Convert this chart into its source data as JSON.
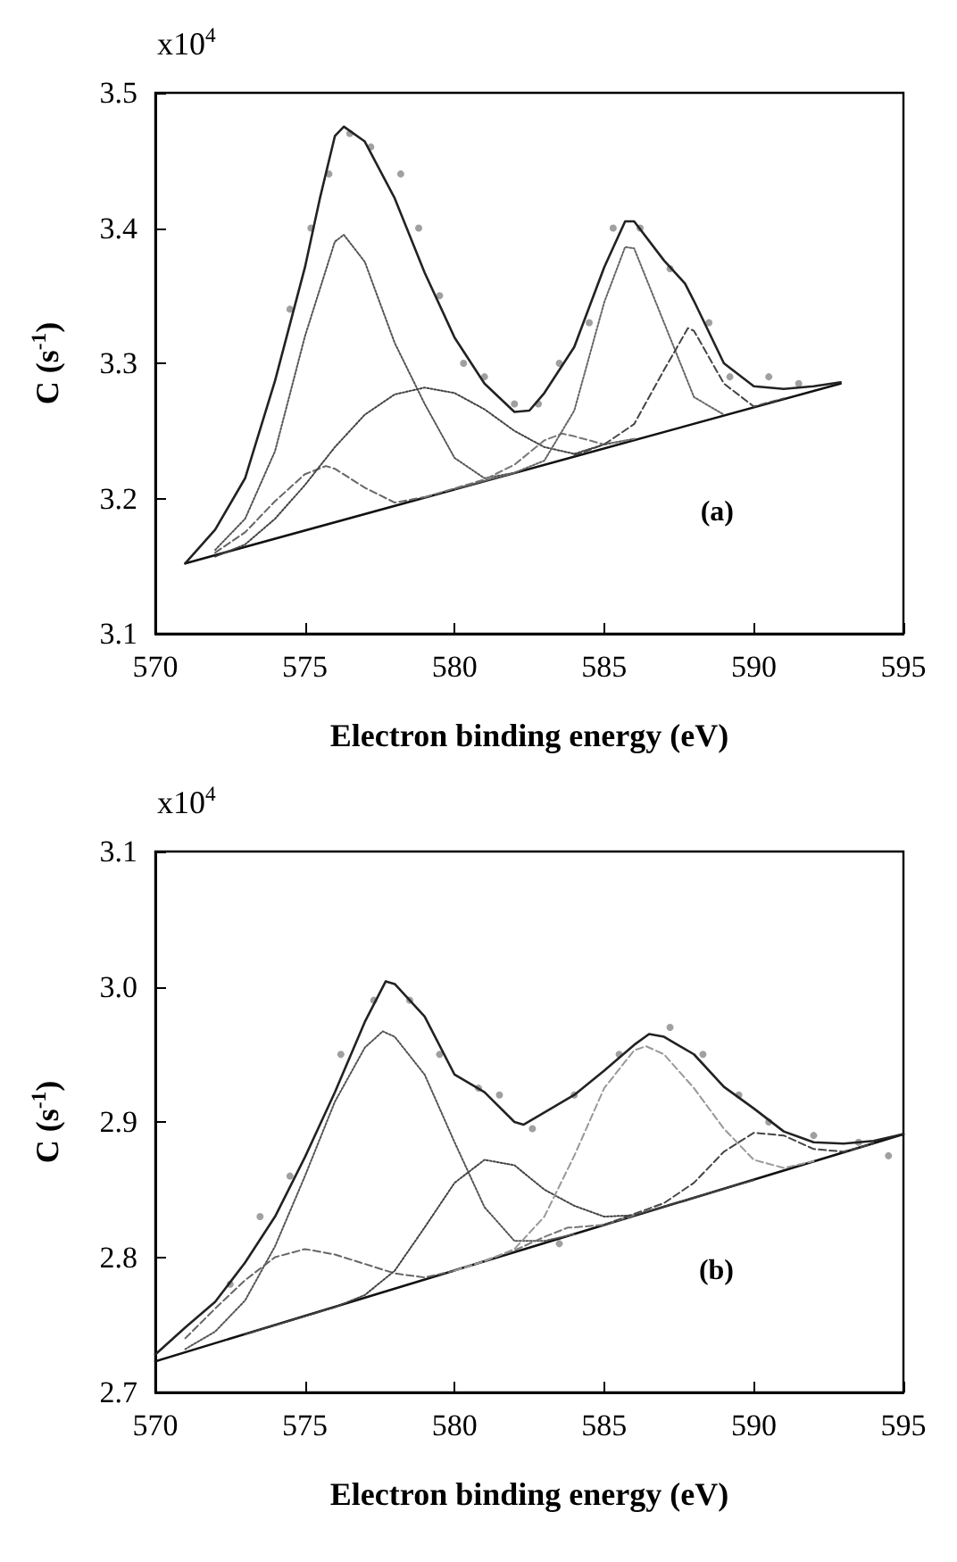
{
  "chart_data": [
    {
      "type": "line",
      "xlabel": "Electron binding energy (eV)",
      "ylabel": "C (s$^{-1}$)",
      "annotations": [
        "x10$^{4}$",
        "(a)"
      ],
      "xlim": [
        570,
        595
      ],
      "xticks": [
        570,
        575,
        580,
        585,
        590,
        595
      ],
      "ylim": [
        3.1,
        3.5
      ],
      "yticks": [
        3.1,
        3.2,
        3.3,
        3.4,
        3.5
      ],
      "grid": false,
      "marker": "none",
      "series": [
        {
          "type": "scatter",
          "marker": "circle",
          "color": "#888888",
          "x": [
            574.5,
            575.2,
            575.8,
            576.5,
            577.2,
            578.2,
            578.8,
            579.5,
            580.3,
            581,
            582,
            582.8,
            583.5,
            584.5,
            585.3,
            586.2,
            587.2,
            588.5,
            589.2,
            590.5,
            591.5
          ],
          "values": [
            3.34,
            3.4,
            3.44,
            3.47,
            3.46,
            3.44,
            3.4,
            3.35,
            3.3,
            3.29,
            3.27,
            3.27,
            3.3,
            3.33,
            3.4,
            3.4,
            3.37,
            3.33,
            3.29,
            3.29,
            3.285
          ]
        },
        {
          "color": "#111111",
          "line_style": "solid",
          "x": [
            571,
            592.9
          ],
          "values": [
            3.152,
            3.285
          ]
        },
        {
          "color": "#555555",
          "line_style": "dotted",
          "x": [
            572,
            573,
            574,
            575,
            576,
            576.3,
            577,
            578,
            579,
            580,
            581,
            582
          ],
          "values": [
            3.162,
            3.185,
            3.235,
            3.32,
            3.39,
            3.395,
            3.375,
            3.315,
            3.27,
            3.23,
            3.215,
            3.219
          ]
        },
        {
          "color": "#666666",
          "line_style": "dashed",
          "x": [
            572,
            573,
            574,
            575,
            575.7,
            576,
            577,
            578,
            579
          ],
          "values": [
            3.16,
            3.175,
            3.198,
            3.218,
            3.224,
            3.222,
            3.208,
            3.197,
            3.201
          ]
        },
        {
          "color": "#444444",
          "line_style": "dotted",
          "x": [
            572,
            573,
            574,
            575,
            576,
            577,
            578,
            579,
            580,
            581,
            582,
            583,
            584,
            585,
            586
          ],
          "values": [
            3.157,
            3.166,
            3.185,
            3.21,
            3.238,
            3.262,
            3.277,
            3.282,
            3.278,
            3.266,
            3.25,
            3.238,
            3.233,
            3.24,
            3.244
          ]
        },
        {
          "color": "#777777",
          "line_style": "dashed",
          "x": [
            579,
            581,
            582,
            583,
            583.6,
            584,
            585,
            586
          ],
          "values": [
            3.201,
            3.214,
            3.225,
            3.243,
            3.248,
            3.246,
            3.24,
            3.244
          ]
        },
        {
          "color": "#666666",
          "line_style": "dotted",
          "x": [
            580,
            582,
            583,
            584,
            585,
            585.7,
            586,
            587,
            588,
            589
          ],
          "values": [
            3.207,
            3.219,
            3.228,
            3.265,
            3.345,
            3.386,
            3.385,
            3.33,
            3.275,
            3.262
          ]
        },
        {
          "color": "#444444",
          "line_style": "dashed",
          "x": [
            584,
            585,
            586,
            587,
            587.8,
            588,
            589,
            590,
            591
          ],
          "values": [
            3.232,
            3.24,
            3.255,
            3.295,
            3.326,
            3.324,
            3.285,
            3.268,
            3.274
          ]
        },
        {
          "color": "#222222",
          "line_style": "solid",
          "x": [
            571,
            572,
            573,
            574,
            575,
            575.5,
            576,
            576.3,
            577,
            578,
            579,
            580,
            581,
            582,
            582.5,
            583,
            584,
            585,
            585.7,
            586,
            587,
            587.7,
            588,
            589,
            590,
            591,
            592,
            592.9
          ],
          "values": [
            3.152,
            3.177,
            3.215,
            3.287,
            3.371,
            3.422,
            3.468,
            3.475,
            3.464,
            3.422,
            3.367,
            3.319,
            3.285,
            3.264,
            3.265,
            3.278,
            3.312,
            3.371,
            3.405,
            3.405,
            3.376,
            3.359,
            3.346,
            3.3,
            3.283,
            3.281,
            3.283,
            3.286
          ]
        }
      ]
    },
    {
      "type": "line",
      "xlabel": "Electron binding energy (eV)",
      "ylabel": "C (s$^{-1}$)",
      "annotations": [
        "x10$^{4}$",
        "(b)"
      ],
      "xlim": [
        570,
        595
      ],
      "xticks": [
        570,
        575,
        580,
        585,
        590,
        595
      ],
      "ylim": [
        2.7,
        3.1
      ],
      "yticks": [
        2.7,
        2.8,
        2.9,
        {
          "value": 3,
          "label": "3.0"
        },
        3.1
      ],
      "grid": false,
      "marker": "none",
      "series": [
        {
          "type": "scatter",
          "marker": "circle",
          "color": "#888888",
          "x": [
            572.5,
            573.5,
            574.5,
            576.2,
            577.3,
            578.5,
            579.5,
            580.8,
            581.5,
            582.6,
            583.5,
            584,
            585.5,
            587.2,
            588.3,
            589.5,
            590.5,
            592,
            593.5,
            594.5
          ],
          "values": [
            2.78,
            2.83,
            2.86,
            2.95,
            2.99,
            2.99,
            2.95,
            2.925,
            2.92,
            2.895,
            2.81,
            2.92,
            2.95,
            2.97,
            2.95,
            2.92,
            2.9,
            2.89,
            2.885,
            2.875
          ]
        },
        {
          "color": "#111111",
          "line_style": "solid",
          "x": [
            570,
            595
          ],
          "values": [
            2.723,
            2.891
          ]
        },
        {
          "color": "#555555",
          "line_style": "dotted",
          "x": [
            571,
            572,
            573,
            574,
            575,
            576,
            577,
            577.6,
            578,
            579,
            580,
            581,
            582,
            583,
            584
          ],
          "values": [
            2.732,
            2.745,
            2.768,
            2.808,
            2.86,
            2.915,
            2.955,
            2.967,
            2.963,
            2.935,
            2.885,
            2.837,
            2.812,
            2.812,
            2.817
          ]
        },
        {
          "color": "#666666",
          "line_style": "dashed",
          "x": [
            571,
            572,
            573,
            574,
            575,
            576,
            577,
            578,
            579,
            580
          ],
          "values": [
            2.74,
            2.762,
            2.783,
            2.8,
            2.806,
            2.802,
            2.795,
            2.788,
            2.785,
            2.79
          ]
        },
        {
          "color": "#444444",
          "line_style": "dotted",
          "x": [
            573,
            576,
            577,
            578,
            579,
            580,
            581,
            582,
            583,
            584,
            585,
            586,
            590
          ],
          "values": [
            2.743,
            2.763,
            2.772,
            2.79,
            2.822,
            2.855,
            2.872,
            2.868,
            2.85,
            2.838,
            2.83,
            2.831,
            2.857
          ]
        },
        {
          "color": "#777777",
          "line_style": "dashed",
          "x": [
            580,
            582,
            583,
            583.8,
            584,
            585,
            586
          ],
          "values": [
            2.79,
            2.805,
            2.815,
            2.822,
            2.822,
            2.824,
            2.831
          ]
        },
        {
          "color": "#999999",
          "line_style": "dashed",
          "x": [
            580,
            581,
            582,
            583,
            584,
            585,
            586,
            586.4,
            587,
            588,
            589,
            590,
            591,
            592
          ],
          "values": [
            2.79,
            2.797,
            2.806,
            2.83,
            2.875,
            2.925,
            2.953,
            2.956,
            2.95,
            2.925,
            2.895,
            2.872,
            2.866,
            2.871
          ]
        },
        {
          "color": "#444444",
          "line_style": "dashed",
          "x": [
            585,
            586,
            587,
            588,
            589,
            590,
            591,
            592,
            593,
            594
          ],
          "values": [
            2.824,
            2.832,
            2.84,
            2.855,
            2.878,
            2.892,
            2.89,
            2.88,
            2.878,
            2.884
          ]
        },
        {
          "color": "#222222",
          "line_style": "solid",
          "x": [
            570,
            571,
            572,
            573,
            574,
            575,
            576,
            577,
            577.7,
            578,
            579,
            580,
            581,
            582,
            582.3,
            583,
            584,
            585,
            586,
            586.5,
            587,
            588,
            589,
            590,
            591,
            592,
            593,
            594,
            595
          ],
          "values": [
            2.728,
            2.748,
            2.767,
            2.796,
            2.83,
            2.874,
            2.922,
            2.974,
            3.004,
            3.002,
            2.978,
            2.935,
            2.922,
            2.9,
            2.898,
            2.907,
            2.92,
            2.938,
            2.957,
            2.965,
            2.963,
            2.95,
            2.926,
            2.91,
            2.893,
            2.885,
            2.884,
            2.886,
            2.891
          ]
        }
      ]
    }
  ]
}
